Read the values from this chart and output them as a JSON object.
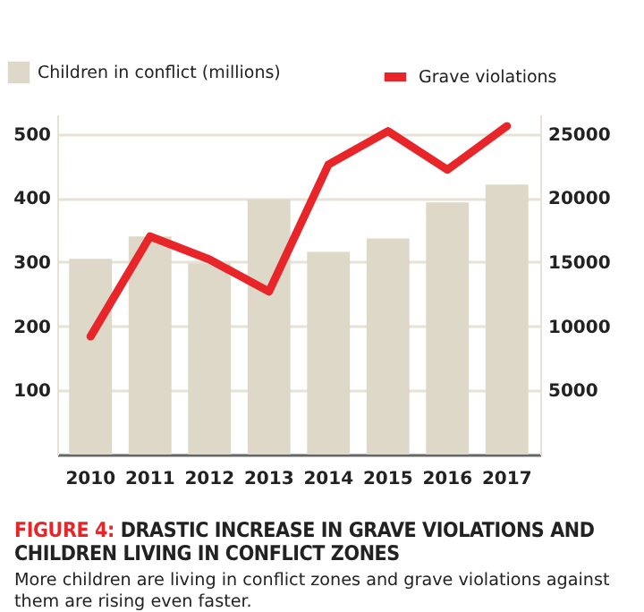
{
  "chart_data": {
    "type": "bar",
    "title": "FIGURE 4: DRASTIC INCREASE IN GRAVE VIOLATIONS AND CHILDREN LIVING IN CONFLICT ZONES",
    "subtitle": "More children are living in conflict zones and grave violations against them are rising even faster.",
    "categories": [
      "2010",
      "2011",
      "2012",
      "2013",
      "2014",
      "2015",
      "2016",
      "2017"
    ],
    "series": [
      {
        "name": "Children in conflict (millions)",
        "color": "#ddd8c8",
        "values": [
          305,
          340,
          298,
          398,
          316,
          337,
          393,
          421
        ]
      },
      {
        "name": "Grave violations",
        "type": "line",
        "axis": "y2",
        "color": "#e8262a",
        "values": [
          9200,
          17000,
          15200,
          12700,
          22600,
          25200,
          22200,
          25600
        ]
      }
    ],
    "ylim": [
      0,
      530
    ],
    "yticks": [
      100,
      200,
      300,
      400,
      500
    ],
    "y2lim": [
      0,
      26500
    ],
    "y2ticks": [
      {
        "value": 5000,
        "label": "5000"
      },
      {
        "value": 10000,
        "label": "10000"
      },
      {
        "value": 15000,
        "label": "15000"
      },
      {
        "value": 20000,
        "label": "20000"
      },
      {
        "value": 25000,
        "label": "25000"
      }
    ],
    "grid": "y",
    "legend": "top"
  }
}
